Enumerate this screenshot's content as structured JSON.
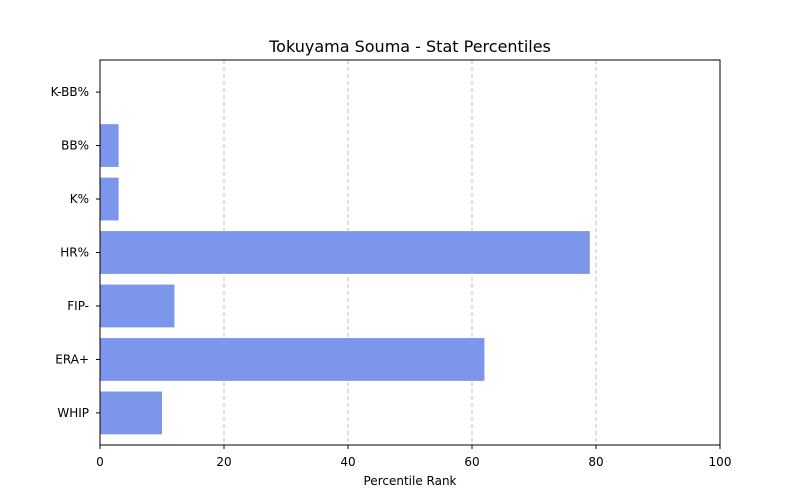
{
  "chart_data": {
    "type": "bar",
    "orientation": "horizontal",
    "title": "Tokuyama Souma - Stat Percentiles",
    "xlabel": "Percentile Rank",
    "ylabel": "",
    "xlim": [
      0,
      100
    ],
    "xticks": [
      "0",
      "20",
      "40",
      "60",
      "80",
      "100"
    ],
    "grid": "x-dashed",
    "bar_color": "#7b96ea",
    "categories": [
      "K-BB%",
      "BB%",
      "K%",
      "HR%",
      "FIP-",
      "ERA+",
      "WHIP"
    ],
    "values": [
      0,
      3,
      3,
      79,
      12,
      62,
      10
    ]
  }
}
